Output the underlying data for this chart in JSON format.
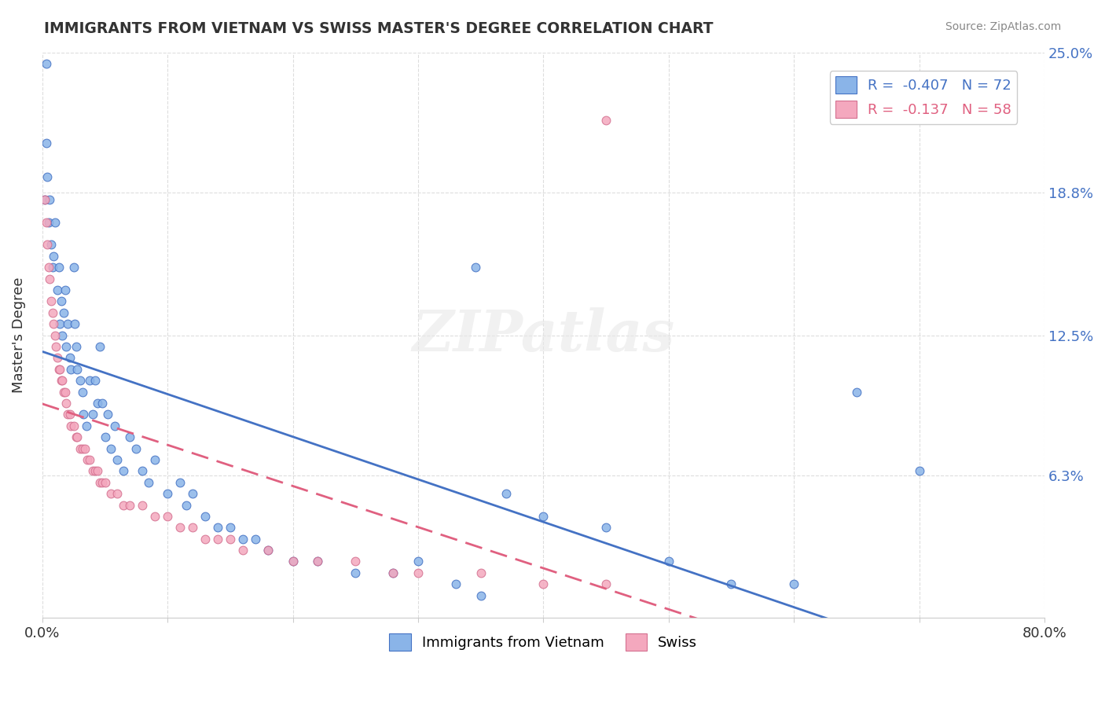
{
  "title": "IMMIGRANTS FROM VIETNAM VS SWISS MASTER'S DEGREE CORRELATION CHART",
  "source": "Source: ZipAtlas.com",
  "xlabel_blue": "Immigrants from Vietnam",
  "xlabel_pink": "Swiss",
  "ylabel": "Master's Degree",
  "legend_blue_R": "-0.407",
  "legend_blue_N": "72",
  "legend_pink_R": "-0.137",
  "legend_pink_N": "58",
  "xlim": [
    0,
    0.8
  ],
  "ylim": [
    0,
    0.25
  ],
  "yticks": [
    0.0,
    0.063,
    0.125,
    0.188,
    0.25
  ],
  "ytick_labels": [
    "",
    "6.3%",
    "12.5%",
    "18.8%",
    "25.0%"
  ],
  "xticks": [
    0.0,
    0.1,
    0.2,
    0.3,
    0.4,
    0.5,
    0.6,
    0.7,
    0.8
  ],
  "xtick_labels": [
    "0.0%",
    "",
    "",
    "",
    "",
    "",
    "",
    "",
    "80.0%"
  ],
  "color_blue": "#8ab4e8",
  "color_pink": "#f4a8be",
  "trend_blue": "#4472c4",
  "trend_pink": "#e06080",
  "watermark": "ZIPatlas",
  "blue_dots": [
    [
      0.002,
      0.185
    ],
    [
      0.003,
      0.21
    ],
    [
      0.004,
      0.195
    ],
    [
      0.005,
      0.175
    ],
    [
      0.006,
      0.185
    ],
    [
      0.007,
      0.165
    ],
    [
      0.008,
      0.155
    ],
    [
      0.009,
      0.16
    ],
    [
      0.01,
      0.175
    ],
    [
      0.012,
      0.145
    ],
    [
      0.013,
      0.155
    ],
    [
      0.014,
      0.13
    ],
    [
      0.015,
      0.14
    ],
    [
      0.016,
      0.125
    ],
    [
      0.017,
      0.135
    ],
    [
      0.018,
      0.145
    ],
    [
      0.019,
      0.12
    ],
    [
      0.02,
      0.13
    ],
    [
      0.022,
      0.115
    ],
    [
      0.023,
      0.11
    ],
    [
      0.025,
      0.155
    ],
    [
      0.026,
      0.13
    ],
    [
      0.027,
      0.12
    ],
    [
      0.028,
      0.11
    ],
    [
      0.03,
      0.105
    ],
    [
      0.032,
      0.1
    ],
    [
      0.033,
      0.09
    ],
    [
      0.035,
      0.085
    ],
    [
      0.038,
      0.105
    ],
    [
      0.04,
      0.09
    ],
    [
      0.042,
      0.105
    ],
    [
      0.044,
      0.095
    ],
    [
      0.046,
      0.12
    ],
    [
      0.048,
      0.095
    ],
    [
      0.05,
      0.08
    ],
    [
      0.052,
      0.09
    ],
    [
      0.055,
      0.075
    ],
    [
      0.058,
      0.085
    ],
    [
      0.06,
      0.07
    ],
    [
      0.065,
      0.065
    ],
    [
      0.07,
      0.08
    ],
    [
      0.075,
      0.075
    ],
    [
      0.08,
      0.065
    ],
    [
      0.085,
      0.06
    ],
    [
      0.09,
      0.07
    ],
    [
      0.1,
      0.055
    ],
    [
      0.11,
      0.06
    ],
    [
      0.115,
      0.05
    ],
    [
      0.12,
      0.055
    ],
    [
      0.13,
      0.045
    ],
    [
      0.14,
      0.04
    ],
    [
      0.15,
      0.04
    ],
    [
      0.16,
      0.035
    ],
    [
      0.17,
      0.035
    ],
    [
      0.18,
      0.03
    ],
    [
      0.2,
      0.025
    ],
    [
      0.22,
      0.025
    ],
    [
      0.25,
      0.02
    ],
    [
      0.28,
      0.02
    ],
    [
      0.3,
      0.025
    ],
    [
      0.33,
      0.015
    ],
    [
      0.35,
      0.01
    ],
    [
      0.37,
      0.055
    ],
    [
      0.4,
      0.045
    ],
    [
      0.45,
      0.04
    ],
    [
      0.5,
      0.025
    ],
    [
      0.55,
      0.015
    ],
    [
      0.6,
      0.015
    ],
    [
      0.65,
      0.1
    ],
    [
      0.7,
      0.065
    ],
    [
      0.346,
      0.155
    ],
    [
      0.003,
      0.245
    ]
  ],
  "pink_dots": [
    [
      0.002,
      0.185
    ],
    [
      0.003,
      0.175
    ],
    [
      0.004,
      0.165
    ],
    [
      0.005,
      0.155
    ],
    [
      0.006,
      0.15
    ],
    [
      0.007,
      0.14
    ],
    [
      0.008,
      0.135
    ],
    [
      0.009,
      0.13
    ],
    [
      0.01,
      0.125
    ],
    [
      0.011,
      0.12
    ],
    [
      0.012,
      0.115
    ],
    [
      0.013,
      0.11
    ],
    [
      0.014,
      0.11
    ],
    [
      0.015,
      0.105
    ],
    [
      0.016,
      0.105
    ],
    [
      0.017,
      0.1
    ],
    [
      0.018,
      0.1
    ],
    [
      0.019,
      0.095
    ],
    [
      0.02,
      0.09
    ],
    [
      0.022,
      0.09
    ],
    [
      0.023,
      0.085
    ],
    [
      0.025,
      0.085
    ],
    [
      0.027,
      0.08
    ],
    [
      0.028,
      0.08
    ],
    [
      0.03,
      0.075
    ],
    [
      0.032,
      0.075
    ],
    [
      0.034,
      0.075
    ],
    [
      0.036,
      0.07
    ],
    [
      0.038,
      0.07
    ],
    [
      0.04,
      0.065
    ],
    [
      0.042,
      0.065
    ],
    [
      0.044,
      0.065
    ],
    [
      0.046,
      0.06
    ],
    [
      0.048,
      0.06
    ],
    [
      0.05,
      0.06
    ],
    [
      0.055,
      0.055
    ],
    [
      0.06,
      0.055
    ],
    [
      0.065,
      0.05
    ],
    [
      0.07,
      0.05
    ],
    [
      0.08,
      0.05
    ],
    [
      0.09,
      0.045
    ],
    [
      0.1,
      0.045
    ],
    [
      0.11,
      0.04
    ],
    [
      0.12,
      0.04
    ],
    [
      0.13,
      0.035
    ],
    [
      0.14,
      0.035
    ],
    [
      0.15,
      0.035
    ],
    [
      0.16,
      0.03
    ],
    [
      0.18,
      0.03
    ],
    [
      0.2,
      0.025
    ],
    [
      0.22,
      0.025
    ],
    [
      0.25,
      0.025
    ],
    [
      0.28,
      0.02
    ],
    [
      0.3,
      0.02
    ],
    [
      0.35,
      0.02
    ],
    [
      0.4,
      0.015
    ],
    [
      0.45,
      0.015
    ],
    [
      0.45,
      0.22
    ]
  ]
}
